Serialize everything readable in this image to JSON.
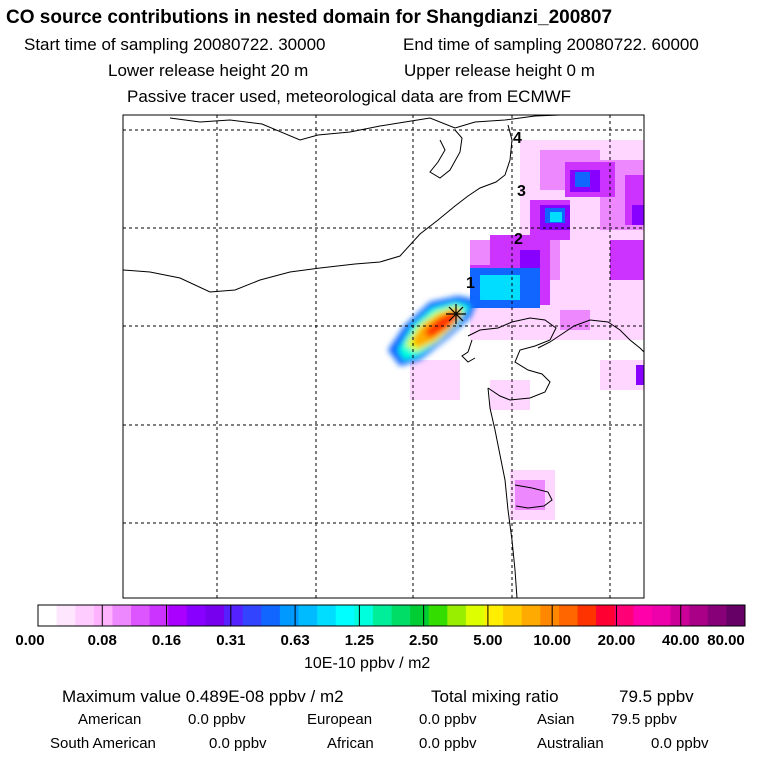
{
  "header": {
    "title": "CO  source contributions in nested domain for Shangdianzi_200807",
    "start_label": "Start time of sampling 20080722. 30000",
    "end_label": "End time of sampling 20080722. 60000",
    "lower_label": "Lower release height   20 m",
    "upper_label": "Upper release height    0 m",
    "tracer_label": "Passive tracer used, meteorological data are from ECMWF"
  },
  "map": {
    "trajectory_labels": [
      "1",
      "2",
      "3",
      "4"
    ]
  },
  "colorbar": {
    "ticks": [
      "0.00",
      "0.08",
      "0.16",
      "0.31",
      "0.63",
      "1.25",
      "2.50",
      "5.00",
      "10.00",
      "20.00",
      "40.00",
      "80.00"
    ],
    "unit": "10E-10 ppbv / m2",
    "colors": [
      "#ffffff",
      "#ffe6ff",
      "#ffccff",
      "#ffb3ff",
      "#ee88ff",
      "#dd55ff",
      "#cc33ff",
      "#aa00ff",
      "#8800ff",
      "#7700ee",
      "#5522ff",
      "#3344ff",
      "#1166ff",
      "#0099ff",
      "#00bbff",
      "#00ddff",
      "#00ffff",
      "#00ffdd",
      "#00ee99",
      "#00dd66",
      "#00cc33",
      "#33dd00",
      "#99ee00",
      "#ddff00",
      "#ffee00",
      "#ffcc00",
      "#ffaa00",
      "#ff8800",
      "#ff6600",
      "#ff3300",
      "#ff0033",
      "#ff0077",
      "#ff00aa",
      "#ee00aa",
      "#cc0099",
      "#aa0088",
      "#880077",
      "#660066"
    ]
  },
  "stats": {
    "max_label": "Maximum value  0.489E-08 ppbv / m2",
    "total_label": "Total mixing ratio",
    "total_value": "79.5 ppbv",
    "regions": [
      {
        "name": "American",
        "value": "0.0 ppbv"
      },
      {
        "name": "European",
        "value": "0.0 ppbv"
      },
      {
        "name": "Asian",
        "value": "79.5 ppbv"
      },
      {
        "name": "South American",
        "value": "0.0 ppbv"
      },
      {
        "name": "African",
        "value": "0.0 ppbv"
      },
      {
        "name": "Australian",
        "value": "0.0 ppbv"
      }
    ]
  }
}
